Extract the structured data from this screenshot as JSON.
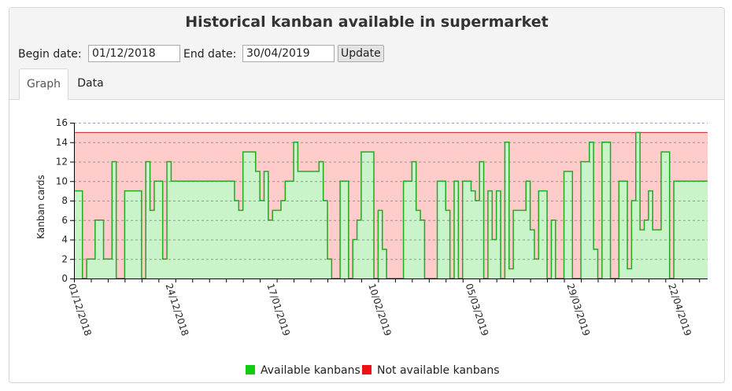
{
  "header": {
    "title": "Historical kanban available in supermarket",
    "begin_label": "Begin date:",
    "begin_value": "01/12/2018",
    "end_label": "End date:",
    "end_value": "30/04/2019",
    "update_label": "Update"
  },
  "tabs": [
    {
      "label": "Graph",
      "active": true
    },
    {
      "label": "Data",
      "active": false
    }
  ],
  "chart_data": {
    "type": "area",
    "ylabel": "Kanban cards",
    "xlabel": "",
    "ylim": [
      0,
      16
    ],
    "yticks": [
      0,
      2,
      4,
      6,
      8,
      10,
      12,
      14,
      16
    ],
    "xlim": [
      "2018-12-01",
      "2019-04-30"
    ],
    "xtick_labels": [
      "01/12/2018",
      "24/12/2018",
      "17/01/2019",
      "10/02/2019",
      "05/03/2019",
      "29/03/2019",
      "22/04/2019"
    ],
    "grid": true,
    "legend_position": "bottom",
    "total_kanbans": 15,
    "colors": {
      "available_line": "#22aa22",
      "available_fill": "#c9f4c9",
      "not_available_fill": "#ffcccc",
      "not_available_line": "#cc2222",
      "legend_available": "#11cc11",
      "legend_not_available": "#ee1111"
    },
    "series": [
      {
        "name": "Available kanbans",
        "step": "post",
        "points": [
          [
            "2018-12-01",
            9
          ],
          [
            "2018-12-03",
            0
          ],
          [
            "2018-12-04",
            2
          ],
          [
            "2018-12-05",
            2
          ],
          [
            "2018-12-06",
            6
          ],
          [
            "2018-12-08",
            2
          ],
          [
            "2018-12-09",
            2
          ],
          [
            "2018-12-10",
            12
          ],
          [
            "2018-12-11",
            0
          ],
          [
            "2018-12-12",
            0
          ],
          [
            "2018-12-13",
            9
          ],
          [
            "2018-12-17",
            0
          ],
          [
            "2018-12-18",
            12
          ],
          [
            "2018-12-19",
            7
          ],
          [
            "2018-12-20",
            10
          ],
          [
            "2018-12-22",
            2
          ],
          [
            "2018-12-23",
            12
          ],
          [
            "2018-12-24",
            10
          ],
          [
            "2019-01-08",
            8
          ],
          [
            "2019-01-09",
            7
          ],
          [
            "2019-01-10",
            13
          ],
          [
            "2019-01-13",
            11
          ],
          [
            "2019-01-14",
            8
          ],
          [
            "2019-01-15",
            11
          ],
          [
            "2019-01-16",
            6
          ],
          [
            "2019-01-17",
            7
          ],
          [
            "2019-01-19",
            8
          ],
          [
            "2019-01-20",
            10
          ],
          [
            "2019-01-22",
            14
          ],
          [
            "2019-01-23",
            11
          ],
          [
            "2019-01-28",
            12
          ],
          [
            "2019-01-29",
            8
          ],
          [
            "2019-01-30",
            2
          ],
          [
            "2019-01-31",
            0
          ],
          [
            "2019-02-02",
            10
          ],
          [
            "2019-02-04",
            0
          ],
          [
            "2019-02-05",
            4
          ],
          [
            "2019-02-06",
            6
          ],
          [
            "2019-02-07",
            13
          ],
          [
            "2019-02-10",
            0
          ],
          [
            "2019-02-11",
            7
          ],
          [
            "2019-02-12",
            3
          ],
          [
            "2019-02-13",
            0
          ],
          [
            "2019-02-17",
            10
          ],
          [
            "2019-02-19",
            12
          ],
          [
            "2019-02-20",
            7
          ],
          [
            "2019-02-21",
            6
          ],
          [
            "2019-02-22",
            0
          ],
          [
            "2019-02-25",
            10
          ],
          [
            "2019-02-27",
            7
          ],
          [
            "2019-02-28",
            0
          ],
          [
            "2019-03-01",
            10
          ],
          [
            "2019-03-02",
            0
          ],
          [
            "2019-03-03",
            10
          ],
          [
            "2019-03-05",
            9
          ],
          [
            "2019-03-06",
            8
          ],
          [
            "2019-03-07",
            12
          ],
          [
            "2019-03-08",
            0
          ],
          [
            "2019-03-09",
            9
          ],
          [
            "2019-03-10",
            4
          ],
          [
            "2019-03-11",
            9
          ],
          [
            "2019-03-12",
            0
          ],
          [
            "2019-03-13",
            14
          ],
          [
            "2019-03-14",
            1
          ],
          [
            "2019-03-15",
            7
          ],
          [
            "2019-03-17",
            7
          ],
          [
            "2019-03-18",
            10
          ],
          [
            "2019-03-19",
            5
          ],
          [
            "2019-03-20",
            2
          ],
          [
            "2019-03-21",
            9
          ],
          [
            "2019-03-23",
            0
          ],
          [
            "2019-03-24",
            6
          ],
          [
            "2019-03-25",
            0
          ],
          [
            "2019-03-27",
            11
          ],
          [
            "2019-03-29",
            0
          ],
          [
            "2019-03-31",
            12
          ],
          [
            "2019-04-02",
            14
          ],
          [
            "2019-04-03",
            3
          ],
          [
            "2019-04-04",
            0
          ],
          [
            "2019-04-05",
            14
          ],
          [
            "2019-04-07",
            0
          ],
          [
            "2019-04-09",
            10
          ],
          [
            "2019-04-11",
            1
          ],
          [
            "2019-04-12",
            8
          ],
          [
            "2019-04-13",
            15
          ],
          [
            "2019-04-14",
            5
          ],
          [
            "2019-04-15",
            6
          ],
          [
            "2019-04-16",
            9
          ],
          [
            "2019-04-17",
            5
          ],
          [
            "2019-04-19",
            13
          ],
          [
            "2019-04-21",
            0
          ],
          [
            "2019-04-22",
            10
          ],
          [
            "2019-04-30",
            10
          ]
        ]
      },
      {
        "name": "Not available kanbans",
        "values": "15 minus available"
      }
    ]
  },
  "legend": [
    {
      "label": "Available kanbans",
      "color": "#11cc11"
    },
    {
      "label": "Not available kanbans",
      "color": "#ee1111"
    }
  ]
}
